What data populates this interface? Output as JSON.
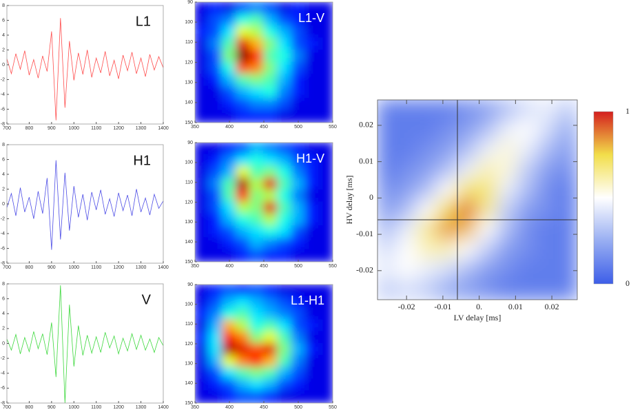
{
  "chart_data": [
    {
      "type": "line",
      "title": "L1",
      "color": "#ff4c4c",
      "x": [
        700,
        720,
        740,
        760,
        780,
        800,
        820,
        840,
        860,
        880,
        900,
        920,
        940,
        960,
        980,
        1000,
        1020,
        1040,
        1060,
        1080,
        1100,
        1120,
        1140,
        1160,
        1180,
        1200,
        1220,
        1240,
        1260,
        1280,
        1300,
        1320,
        1340,
        1360,
        1380,
        1400
      ],
      "values": [
        0.8,
        -1.2,
        1.5,
        -0.6,
        1.9,
        -1.4,
        0.7,
        -1.8,
        1.2,
        -0.9,
        4.5,
        -7.5,
        6.3,
        -5.8,
        3.2,
        -2.1,
        1.6,
        -1.3,
        2.0,
        -1.7,
        0.9,
        -1.1,
        1.8,
        -1.5,
        0.6,
        -1.9,
        1.3,
        -0.8,
        1.7,
        -1.2,
        0.9,
        -1.6,
        1.4,
        -0.7,
        1.1,
        -0.4
      ],
      "xlim": [
        700,
        1400
      ],
      "xticks": [
        700,
        800,
        900,
        1000,
        1100,
        1200,
        1300,
        1400
      ],
      "ylim": [
        -8,
        8
      ],
      "yticks": [
        -8,
        -6,
        -4,
        -2,
        0,
        2,
        4,
        6,
        8
      ]
    },
    {
      "type": "line",
      "title": "H1",
      "color": "#4c4ce6",
      "x": [
        700,
        720,
        740,
        760,
        780,
        800,
        820,
        840,
        860,
        880,
        900,
        920,
        940,
        960,
        980,
        1000,
        1020,
        1040,
        1060,
        1080,
        1100,
        1120,
        1140,
        1160,
        1180,
        1200,
        1220,
        1240,
        1260,
        1280,
        1300,
        1320,
        1340,
        1360,
        1380,
        1400
      ],
      "values": [
        -0.5,
        1.4,
        -1.6,
        2.2,
        -1.1,
        0.9,
        -2.0,
        1.7,
        -1.3,
        3.5,
        -6.2,
        5.9,
        -4.8,
        4.2,
        -3.6,
        2.4,
        -1.8,
        1.3,
        -2.2,
        1.6,
        -0.8,
        1.9,
        -1.4,
        0.7,
        -1.7,
        1.5,
        -0.9,
        1.2,
        -1.6,
        2.0,
        -1.1,
        0.8,
        -1.5,
        1.3,
        -0.6,
        0.4
      ],
      "xlim": [
        700,
        1400
      ],
      "xticks": [
        700,
        800,
        900,
        1000,
        1100,
        1200,
        1300,
        1400
      ],
      "ylim": [
        -8,
        8
      ],
      "yticks": [
        -8,
        -6,
        -4,
        -2,
        0,
        2,
        4,
        6,
        8
      ]
    },
    {
      "type": "line",
      "title": "V",
      "color": "#3cd83c",
      "x": [
        700,
        720,
        740,
        760,
        780,
        800,
        820,
        840,
        860,
        880,
        900,
        920,
        940,
        960,
        980,
        1000,
        1020,
        1040,
        1060,
        1080,
        1100,
        1120,
        1140,
        1160,
        1180,
        1200,
        1220,
        1240,
        1260,
        1280,
        1300,
        1320,
        1340,
        1360,
        1380,
        1400
      ],
      "values": [
        0.6,
        -0.9,
        1.2,
        -1.4,
        0.8,
        -1.1,
        1.6,
        -0.7,
        1.3,
        -1.5,
        2.8,
        -4.5,
        7.8,
        -8.0,
        5.2,
        -3.1,
        2.4,
        -1.6,
        1.1,
        -1.3,
        0.9,
        -1.2,
        1.5,
        -0.6,
        1.0,
        -1.4,
        0.7,
        -1.0,
        1.3,
        -0.8,
        1.1,
        -0.9,
        0.6,
        -1.2,
        0.8,
        -0.3
      ],
      "xlim": [
        700,
        1400
      ],
      "xticks": [
        700,
        800,
        900,
        1000,
        1100,
        1200,
        1300,
        1400
      ],
      "ylim": [
        -8,
        8
      ],
      "yticks": [
        -8,
        -6,
        -4,
        -2,
        0,
        2,
        4,
        6,
        8
      ]
    },
    {
      "type": "heatmap",
      "title": "L1-V",
      "colormap": "jet",
      "xlim": [
        350,
        550
      ],
      "xticks": [
        350,
        400,
        450,
        500,
        550
      ],
      "ylim": [
        150,
        90
      ],
      "yticks": [
        90,
        100,
        110,
        120,
        130,
        140,
        150
      ],
      "z": [
        [
          0.1,
          0.15,
          0.1,
          0.2,
          0.25,
          0.2,
          0.1,
          0.15,
          0.1,
          0.1
        ],
        [
          0.1,
          0.2,
          0.25,
          0.4,
          0.45,
          0.3,
          0.2,
          0.15,
          0.1,
          0.1
        ],
        [
          0.15,
          0.2,
          0.35,
          0.6,
          0.55,
          0.4,
          0.3,
          0.2,
          0.1,
          0.1
        ],
        [
          0.1,
          0.25,
          0.45,
          0.9,
          0.7,
          0.5,
          0.35,
          0.2,
          0.15,
          0.1
        ],
        [
          0.1,
          0.2,
          0.5,
          1.0,
          0.85,
          0.45,
          0.4,
          0.25,
          0.1,
          0.1
        ],
        [
          0.1,
          0.2,
          0.4,
          0.8,
          0.75,
          0.5,
          0.35,
          0.2,
          0.1,
          0.1
        ],
        [
          0.1,
          0.15,
          0.3,
          0.45,
          0.5,
          0.45,
          0.3,
          0.15,
          0.1,
          0.1
        ],
        [
          0.1,
          0.1,
          0.2,
          0.3,
          0.35,
          0.4,
          0.25,
          0.15,
          0.1,
          0.1
        ],
        [
          0.1,
          0.1,
          0.15,
          0.2,
          0.25,
          0.25,
          0.2,
          0.1,
          0.1,
          0.1
        ],
        [
          0.1,
          0.1,
          0.1,
          0.15,
          0.15,
          0.15,
          0.1,
          0.1,
          0.1,
          0.1
        ]
      ]
    },
    {
      "type": "heatmap",
      "title": "H1-V",
      "colormap": "jet",
      "xlim": [
        350,
        550
      ],
      "xticks": [
        350,
        400,
        450,
        500,
        550
      ],
      "ylim": [
        150,
        90
      ],
      "yticks": [
        90,
        100,
        110,
        120,
        130,
        140,
        150
      ],
      "z": [
        [
          0.1,
          0.1,
          0.15,
          0.2,
          0.3,
          0.25,
          0.2,
          0.15,
          0.1,
          0.1
        ],
        [
          0.1,
          0.15,
          0.25,
          0.35,
          0.4,
          0.35,
          0.3,
          0.2,
          0.15,
          0.1
        ],
        [
          0.1,
          0.2,
          0.3,
          0.6,
          0.45,
          0.5,
          0.4,
          0.25,
          0.15,
          0.1
        ],
        [
          0.1,
          0.25,
          0.45,
          0.95,
          0.55,
          0.9,
          0.45,
          0.3,
          0.15,
          0.1
        ],
        [
          0.1,
          0.2,
          0.45,
          0.85,
          0.5,
          0.55,
          0.4,
          0.25,
          0.1,
          0.1
        ],
        [
          0.1,
          0.2,
          0.35,
          0.55,
          0.5,
          0.9,
          0.45,
          0.3,
          0.15,
          0.1
        ],
        [
          0.1,
          0.15,
          0.3,
          0.4,
          0.45,
          0.55,
          0.4,
          0.3,
          0.15,
          0.1
        ],
        [
          0.1,
          0.15,
          0.2,
          0.3,
          0.35,
          0.4,
          0.35,
          0.2,
          0.1,
          0.1
        ],
        [
          0.1,
          0.1,
          0.15,
          0.2,
          0.3,
          0.25,
          0.2,
          0.15,
          0.1,
          0.1
        ],
        [
          0.1,
          0.1,
          0.1,
          0.15,
          0.2,
          0.15,
          0.15,
          0.1,
          0.1,
          0.1
        ]
      ]
    },
    {
      "type": "heatmap",
      "title": "L1-H1",
      "colormap": "jet",
      "xlim": [
        350,
        550
      ],
      "xticks": [
        350,
        400,
        450,
        500,
        550
      ],
      "ylim": [
        150,
        90
      ],
      "yticks": [
        90,
        100,
        110,
        120,
        130,
        140,
        150
      ],
      "z": [
        [
          0.1,
          0.15,
          0.2,
          0.15,
          0.2,
          0.15,
          0.1,
          0.1,
          0.1,
          0.1
        ],
        [
          0.1,
          0.2,
          0.3,
          0.35,
          0.3,
          0.25,
          0.2,
          0.15,
          0.1,
          0.1
        ],
        [
          0.15,
          0.25,
          0.4,
          0.45,
          0.35,
          0.3,
          0.25,
          0.2,
          0.1,
          0.1
        ],
        [
          0.1,
          0.3,
          0.7,
          0.55,
          0.4,
          0.45,
          0.35,
          0.2,
          0.15,
          0.1
        ],
        [
          0.15,
          0.35,
          0.85,
          0.75,
          0.5,
          0.6,
          0.45,
          0.25,
          0.1,
          0.1
        ],
        [
          0.1,
          0.35,
          0.95,
          0.9,
          0.8,
          0.9,
          0.5,
          0.3,
          0.15,
          0.1
        ],
        [
          0.1,
          0.3,
          0.6,
          0.75,
          0.85,
          0.7,
          0.45,
          0.25,
          0.1,
          0.1
        ],
        [
          0.1,
          0.2,
          0.35,
          0.45,
          0.5,
          0.45,
          0.3,
          0.2,
          0.1,
          0.1
        ],
        [
          0.1,
          0.15,
          0.2,
          0.3,
          0.35,
          0.3,
          0.2,
          0.15,
          0.1,
          0.1
        ],
        [
          0.1,
          0.1,
          0.15,
          0.2,
          0.2,
          0.15,
          0.1,
          0.1,
          0.1,
          0.1
        ]
      ]
    },
    {
      "type": "contour",
      "x_label": "LV delay [ms]",
      "y_label": "HV delay [ms]",
      "colormap": [
        "#3d5ee8",
        "#98aef2",
        "#ffffff",
        "#f2de4a",
        "#d41e1e"
      ],
      "xlim": [
        -0.028,
        0.027
      ],
      "xticks": [
        -0.02,
        -0.01,
        {
          "value": 0,
          "label": "0."
        },
        0.01,
        0.02
      ],
      "ylim": [
        -0.028,
        0.027
      ],
      "yticks": [
        -0.02,
        -0.01,
        0,
        0.01,
        0.02
      ],
      "crosshair": {
        "x": -0.006,
        "y": -0.006
      },
      "clim": [
        0,
        1
      ],
      "colorbar_ticks": [
        0,
        1
      ],
      "z": [
        [
          0.1,
          0.1,
          0.1,
          0.1,
          0.15,
          0.2,
          0.3,
          0.4,
          0.45,
          0.35
        ],
        [
          0.1,
          0.1,
          0.1,
          0.15,
          0.2,
          0.3,
          0.45,
          0.5,
          0.4,
          0.25
        ],
        [
          0.1,
          0.1,
          0.15,
          0.2,
          0.3,
          0.45,
          0.55,
          0.45,
          0.3,
          0.2
        ],
        [
          0.1,
          0.15,
          0.2,
          0.3,
          0.45,
          0.6,
          0.55,
          0.35,
          0.2,
          0.15
        ],
        [
          0.15,
          0.2,
          0.3,
          0.5,
          0.7,
          0.7,
          0.45,
          0.3,
          0.15,
          0.1
        ],
        [
          0.2,
          0.3,
          0.5,
          0.75,
          0.9,
          0.65,
          0.35,
          0.2,
          0.15,
          0.1
        ],
        [
          0.3,
          0.45,
          0.65,
          0.85,
          0.8,
          0.5,
          0.3,
          0.15,
          0.1,
          0.1
        ],
        [
          0.4,
          0.5,
          0.6,
          0.6,
          0.5,
          0.35,
          0.2,
          0.15,
          0.1,
          0.1
        ],
        [
          0.45,
          0.5,
          0.45,
          0.4,
          0.3,
          0.2,
          0.15,
          0.1,
          0.1,
          0.1
        ],
        [
          0.35,
          0.4,
          0.35,
          0.25,
          0.2,
          0.15,
          0.1,
          0.1,
          0.1,
          0.1
        ]
      ]
    }
  ]
}
